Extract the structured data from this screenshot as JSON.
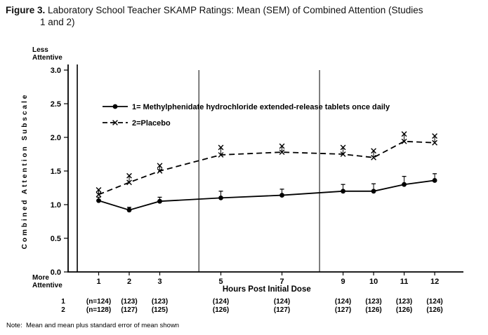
{
  "figure": {
    "label": "Figure 3.",
    "title_line1": "Laboratory School Teacher SKAMP Ratings: Mean (SEM) of Combined Attention (Studies",
    "title_line2": "1 and 2)",
    "note": "Note:  Mean and mean plus standard error of mean shown"
  },
  "chart_data": {
    "type": "line",
    "title": "Laboratory School Teacher SKAMP Ratings: Mean (SEM) of Combined Attention (Studies 1 and 2)",
    "xlabel": "Hours Post Initial Dose",
    "ylabel": "Combined Attention Subscale",
    "y_axis_top_label": [
      "Less",
      "Attentive"
    ],
    "y_axis_bottom_label": [
      "More",
      "Attentive"
    ],
    "ylim": [
      0.0,
      3.0
    ],
    "yticks": [
      "3.0",
      "2.5",
      "2.0",
      "1.5",
      "1.0",
      "0.5",
      "0.0"
    ],
    "x": [
      1,
      2,
      3,
      5,
      7,
      9,
      10,
      11,
      12
    ],
    "series": [
      {
        "name": "1= Methylphenidate hydrochloride extended-release tablets once daily",
        "marker": "circle",
        "line": "solid",
        "values": [
          1.06,
          0.92,
          1.05,
          1.1,
          1.14,
          1.2,
          1.2,
          1.3,
          1.36
        ],
        "sem": [
          0.05,
          0.04,
          0.06,
          0.1,
          0.09,
          0.1,
          0.11,
          0.12,
          0.1
        ]
      },
      {
        "name": "2=Placebo",
        "marker": "x",
        "line": "dashed",
        "values": [
          1.15,
          1.33,
          1.5,
          1.74,
          1.78,
          1.75,
          1.7,
          1.94,
          1.92
        ],
        "sem": [
          0.07,
          0.1,
          0.08,
          0.11,
          0.09,
          0.1,
          0.1,
          0.11,
          0.1
        ]
      }
    ],
    "session_divider_hours": [
      4.28,
      8.23
    ],
    "inner_axis_hour": 0.3,
    "legend_position": "upper-left-inside",
    "grid": "off",
    "error_bars": "mean plus SEM shown upward",
    "n_table": {
      "rows": [
        {
          "label": "1",
          "values": [
            "(n=124)",
            "(123)",
            "(123)",
            "(124)",
            "(124)",
            "(124)",
            "(123)",
            "(123)",
            "(124)"
          ]
        },
        {
          "label": "2",
          "values": [
            "(n=128)",
            "(127)",
            "(125)",
            "(126)",
            "(127)",
            "(127)",
            "(126)",
            "(126)",
            "(126)"
          ]
        }
      ]
    }
  }
}
